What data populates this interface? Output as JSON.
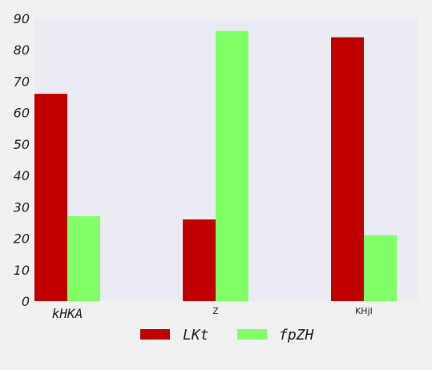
{
  "chart_data": {
    "type": "bar",
    "title": "",
    "xlabel": "",
    "ylabel": "",
    "categories": [
      "kHKA",
      "Z",
      "KHjI"
    ],
    "series": [
      {
        "name": "LKt",
        "values": [
          66,
          26,
          84
        ],
        "color": "#c00000"
      },
      {
        "name": "fpZH",
        "values": [
          27,
          86,
          21
        ],
        "color": "#80ff66"
      }
    ],
    "ylim": [
      0,
      90
    ],
    "yticks": [
      0,
      10,
      20,
      30,
      40,
      50,
      60,
      70,
      80,
      90
    ],
    "grid": false,
    "legend_position": "bottom",
    "plot_background": "#eaeaf2"
  }
}
